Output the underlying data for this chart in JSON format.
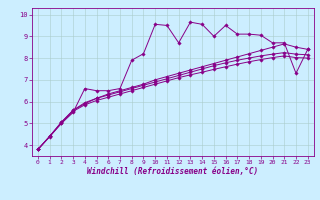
{
  "xlabel": "Windchill (Refroidissement éolien,°C)",
  "ylabel": "",
  "xlim": [
    -0.5,
    23.5
  ],
  "ylim": [
    3.5,
    10.3
  ],
  "xticks": [
    0,
    1,
    2,
    3,
    4,
    5,
    6,
    7,
    8,
    9,
    10,
    11,
    12,
    13,
    14,
    15,
    16,
    17,
    18,
    19,
    20,
    21,
    22,
    23
  ],
  "yticks": [
    4,
    5,
    6,
    7,
    8,
    9,
    10
  ],
  "bg_color": "#cceeff",
  "line_color": "#880088",
  "grid_color": "#aaddee",
  "series": [
    {
      "x": [
        0,
        1,
        2,
        3,
        4,
        5,
        6,
        7,
        8,
        9,
        10,
        11,
        12,
        13,
        14,
        15,
        16,
        17,
        18,
        19,
        20,
        21,
        22,
        23
      ],
      "y": [
        3.8,
        4.4,
        5.0,
        5.5,
        6.6,
        6.5,
        6.5,
        6.6,
        7.9,
        8.2,
        9.55,
        9.5,
        8.7,
        9.65,
        9.55,
        9.0,
        9.5,
        9.1,
        9.1,
        9.05,
        8.7,
        8.7,
        7.3,
        8.4
      ]
    },
    {
      "x": [
        0,
        1,
        2,
        3,
        4,
        5,
        6,
        7,
        8,
        9,
        10,
        11,
        12,
        13,
        14,
        15,
        16,
        17,
        18,
        19,
        20,
        21,
        22,
        23
      ],
      "y": [
        3.8,
        4.4,
        5.05,
        5.6,
        5.9,
        6.15,
        6.35,
        6.5,
        6.65,
        6.8,
        7.0,
        7.15,
        7.3,
        7.45,
        7.6,
        7.75,
        7.9,
        8.05,
        8.2,
        8.35,
        8.5,
        8.65,
        8.5,
        8.4
      ]
    },
    {
      "x": [
        0,
        1,
        2,
        3,
        4,
        5,
        6,
        7,
        8,
        9,
        10,
        11,
        12,
        13,
        14,
        15,
        16,
        17,
        18,
        19,
        20,
        21,
        22,
        23
      ],
      "y": [
        3.8,
        4.4,
        5.05,
        5.6,
        5.95,
        6.15,
        6.3,
        6.45,
        6.6,
        6.75,
        6.9,
        7.05,
        7.2,
        7.35,
        7.5,
        7.65,
        7.78,
        7.9,
        8.0,
        8.1,
        8.18,
        8.25,
        8.18,
        8.15
      ]
    },
    {
      "x": [
        0,
        1,
        2,
        3,
        4,
        5,
        6,
        7,
        8,
        9,
        10,
        11,
        12,
        13,
        14,
        15,
        16,
        17,
        18,
        19,
        20,
        21,
        22,
        23
      ],
      "y": [
        3.8,
        4.38,
        5.0,
        5.55,
        5.85,
        6.05,
        6.2,
        6.35,
        6.5,
        6.65,
        6.8,
        6.95,
        7.1,
        7.23,
        7.35,
        7.48,
        7.6,
        7.72,
        7.83,
        7.93,
        8.02,
        8.1,
        8.02,
        8.0
      ]
    }
  ]
}
